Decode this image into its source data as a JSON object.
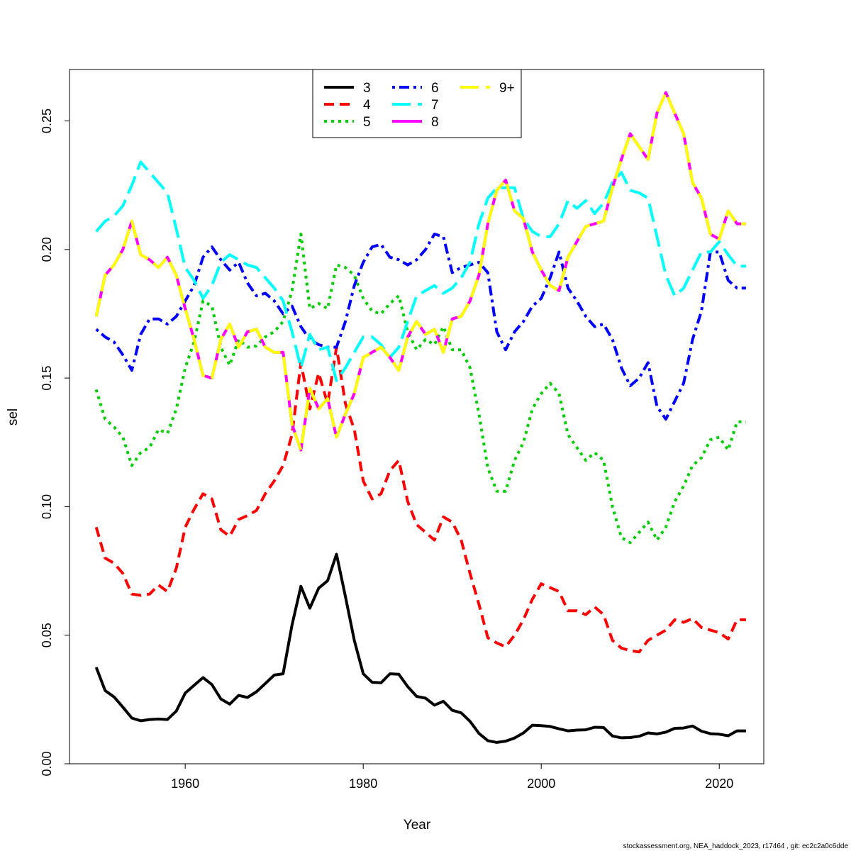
{
  "chart_data": {
    "type": "line",
    "xlabel": "Year",
    "ylabel": "sel",
    "xlim": [
      1947,
      2025
    ],
    "ylim": [
      0.0,
      0.27
    ],
    "x_ticks": [
      1960,
      1980,
      2000,
      2020
    ],
    "y_ticks": [
      0.0,
      0.05,
      0.1,
      0.15,
      0.2,
      0.25
    ],
    "x_tick_labels": [
      "1960",
      "1980",
      "2000",
      "2020"
    ],
    "y_tick_labels": [
      "0.00",
      "0.05",
      "0.10",
      "0.15",
      "0.20",
      "0.25"
    ],
    "legend_position": "top-center",
    "grid": false,
    "x": [
      1950,
      1951,
      1952,
      1953,
      1954,
      1955,
      1956,
      1957,
      1958,
      1959,
      1960,
      1961,
      1962,
      1963,
      1964,
      1965,
      1966,
      1967,
      1968,
      1969,
      1970,
      1971,
      1972,
      1973,
      1974,
      1975,
      1976,
      1977,
      1978,
      1979,
      1980,
      1981,
      1982,
      1983,
      1984,
      1985,
      1986,
      1987,
      1988,
      1989,
      1990,
      1991,
      1992,
      1993,
      1994,
      1995,
      1996,
      1997,
      1998,
      1999,
      2000,
      2001,
      2002,
      2003,
      2004,
      2005,
      2006,
      2007,
      2008,
      2009,
      2010,
      2011,
      2012,
      2013,
      2014,
      2015,
      2016,
      2017,
      2018,
      2019,
      2020,
      2021,
      2022,
      2023
    ],
    "series": [
      {
        "name": "3",
        "color": "#000000",
        "dash": "solid",
        "values": [
          0.0375,
          0.0285,
          0.026,
          0.022,
          0.0178,
          0.0167,
          0.0172,
          0.0174,
          0.0172,
          0.0205,
          0.0275,
          0.0305,
          0.0335,
          0.0308,
          0.0252,
          0.0232,
          0.0266,
          0.0258,
          0.028,
          0.0312,
          0.0345,
          0.035,
          0.054,
          0.069,
          0.0605,
          0.0683,
          0.0712,
          0.0815,
          0.065,
          0.048,
          0.035,
          0.0317,
          0.0315,
          0.035,
          0.0348,
          0.03,
          0.0262,
          0.0255,
          0.0228,
          0.0243,
          0.0208,
          0.0198,
          0.0165,
          0.0118,
          0.009,
          0.0083,
          0.0088,
          0.01,
          0.012,
          0.015,
          0.0148,
          0.0145,
          0.0136,
          0.0128,
          0.0131,
          0.0132,
          0.0142,
          0.0141,
          0.0108,
          0.0101,
          0.0102,
          0.0107,
          0.012,
          0.0116,
          0.0123,
          0.0138,
          0.0139,
          0.0147,
          0.0127,
          0.0117,
          0.0115,
          0.0109,
          0.0128,
          0.0128
        ]
      },
      {
        "name": "4",
        "color": "#ff0000",
        "dash": "dashed",
        "values": [
          0.092,
          0.08,
          0.078,
          0.074,
          0.066,
          0.0655,
          0.066,
          0.0695,
          0.067,
          0.076,
          0.092,
          0.099,
          0.105,
          0.103,
          0.091,
          0.0885,
          0.095,
          0.0965,
          0.0985,
          0.105,
          0.11,
          0.116,
          0.128,
          0.156,
          0.138,
          0.152,
          0.14,
          0.162,
          0.14,
          0.13,
          0.11,
          0.103,
          0.105,
          0.114,
          0.118,
          0.102,
          0.093,
          0.09,
          0.087,
          0.096,
          0.094,
          0.087,
          0.074,
          0.062,
          0.049,
          0.047,
          0.0455,
          0.05,
          0.056,
          0.064,
          0.07,
          0.0685,
          0.067,
          0.0595,
          0.0595,
          0.058,
          0.061,
          0.058,
          0.048,
          0.045,
          0.044,
          0.0435,
          0.048,
          0.05,
          0.052,
          0.056,
          0.055,
          0.0565,
          0.053,
          0.052,
          0.051,
          0.0485,
          0.056,
          0.056
        ]
      },
      {
        "name": "5",
        "color": "#00cd00",
        "dash": "dotted",
        "values": [
          0.1455,
          0.134,
          0.131,
          0.127,
          0.116,
          0.121,
          0.123,
          0.13,
          0.1285,
          0.138,
          0.154,
          0.164,
          0.18,
          0.178,
          0.162,
          0.155,
          0.165,
          0.162,
          0.1625,
          0.166,
          0.168,
          0.172,
          0.184,
          0.206,
          0.177,
          0.179,
          0.177,
          0.194,
          0.193,
          0.19,
          0.181,
          0.176,
          0.175,
          0.179,
          0.182,
          0.168,
          0.161,
          0.165,
          0.163,
          0.17,
          0.161,
          0.161,
          0.154,
          0.136,
          0.115,
          0.106,
          0.106,
          0.118,
          0.125,
          0.138,
          0.144,
          0.148,
          0.144,
          0.128,
          0.123,
          0.118,
          0.121,
          0.118,
          0.1,
          0.088,
          0.086,
          0.09,
          0.094,
          0.087,
          0.092,
          0.102,
          0.108,
          0.116,
          0.119,
          0.126,
          0.127,
          0.122,
          0.133,
          0.133
        ]
      },
      {
        "name": "6",
        "color": "#0000ff",
        "dash": "dotdash",
        "values": [
          0.169,
          0.166,
          0.164,
          0.159,
          0.153,
          0.167,
          0.173,
          0.173,
          0.171,
          0.174,
          0.18,
          0.186,
          0.197,
          0.201,
          0.196,
          0.192,
          0.195,
          0.187,
          0.182,
          0.183,
          0.18,
          0.175,
          0.178,
          0.17,
          0.165,
          0.163,
          0.162,
          0.162,
          0.172,
          0.186,
          0.195,
          0.201,
          0.202,
          0.197,
          0.196,
          0.194,
          0.196,
          0.2,
          0.206,
          0.205,
          0.191,
          0.193,
          0.194,
          0.195,
          0.191,
          0.168,
          0.161,
          0.168,
          0.172,
          0.178,
          0.181,
          0.189,
          0.199,
          0.185,
          0.18,
          0.174,
          0.17,
          0.171,
          0.165,
          0.154,
          0.147,
          0.15,
          0.156,
          0.139,
          0.134,
          0.141,
          0.148,
          0.165,
          0.176,
          0.199,
          0.199,
          0.188,
          0.185,
          0.185
        ]
      },
      {
        "name": "7",
        "color": "#00ffff",
        "dash": "longdash",
        "values": [
          0.207,
          0.211,
          0.213,
          0.217,
          0.225,
          0.234,
          0.23,
          0.226,
          0.222,
          0.208,
          0.193,
          0.188,
          0.181,
          0.186,
          0.195,
          0.198,
          0.196,
          0.194,
          0.193,
          0.189,
          0.185,
          0.18,
          0.168,
          0.154,
          0.167,
          0.161,
          0.162,
          0.149,
          0.154,
          0.16,
          0.166,
          0.166,
          0.163,
          0.158,
          0.162,
          0.172,
          0.182,
          0.184,
          0.186,
          0.183,
          0.185,
          0.189,
          0.195,
          0.21,
          0.22,
          0.224,
          0.224,
          0.224,
          0.212,
          0.207,
          0.205,
          0.205,
          0.21,
          0.219,
          0.216,
          0.219,
          0.214,
          0.218,
          0.226,
          0.23,
          0.223,
          0.222,
          0.22,
          0.205,
          0.19,
          0.182,
          0.185,
          0.192,
          0.199,
          0.199,
          0.203,
          0.198,
          0.1935,
          0.1935
        ]
      },
      {
        "name": "8",
        "color": "#ff00ff",
        "dash": "solid",
        "values": [
          0.174,
          0.19,
          0.194,
          0.2,
          0.211,
          0.198,
          0.196,
          0.193,
          0.197,
          0.19,
          0.177,
          0.165,
          0.151,
          0.15,
          0.165,
          0.171,
          0.162,
          0.168,
          0.169,
          0.162,
          0.16,
          0.16,
          0.132,
          0.122,
          0.146,
          0.138,
          0.142,
          0.127,
          0.136,
          0.144,
          0.158,
          0.16,
          0.162,
          0.158,
          0.153,
          0.166,
          0.172,
          0.167,
          0.169,
          0.16,
          0.173,
          0.174,
          0.18,
          0.19,
          0.21,
          0.223,
          0.227,
          0.215,
          0.212,
          0.199,
          0.192,
          0.186,
          0.184,
          0.197,
          0.203,
          0.209,
          0.21,
          0.211,
          0.224,
          0.235,
          0.245,
          0.24,
          0.235,
          0.253,
          0.261,
          0.253,
          0.245,
          0.226,
          0.22,
          0.206,
          0.204,
          0.215,
          0.21,
          0.21
        ]
      },
      {
        "name": "9+",
        "color": "#ffff00",
        "dash": "longdash",
        "values": [
          0.174,
          0.19,
          0.194,
          0.2,
          0.211,
          0.198,
          0.196,
          0.193,
          0.197,
          0.19,
          0.177,
          0.165,
          0.151,
          0.15,
          0.165,
          0.171,
          0.162,
          0.168,
          0.169,
          0.162,
          0.16,
          0.16,
          0.132,
          0.122,
          0.146,
          0.138,
          0.142,
          0.127,
          0.136,
          0.144,
          0.158,
          0.16,
          0.162,
          0.158,
          0.153,
          0.166,
          0.172,
          0.167,
          0.169,
          0.16,
          0.173,
          0.174,
          0.18,
          0.19,
          0.21,
          0.223,
          0.227,
          0.215,
          0.212,
          0.199,
          0.192,
          0.186,
          0.184,
          0.197,
          0.203,
          0.209,
          0.21,
          0.211,
          0.224,
          0.235,
          0.245,
          0.24,
          0.235,
          0.253,
          0.261,
          0.253,
          0.245,
          0.226,
          0.22,
          0.206,
          0.204,
          0.215,
          0.21,
          0.21
        ]
      }
    ]
  },
  "footer": "stockassessment.org, NEA_haddock_2023, r17464 , git: ec2c2a0c6dde"
}
